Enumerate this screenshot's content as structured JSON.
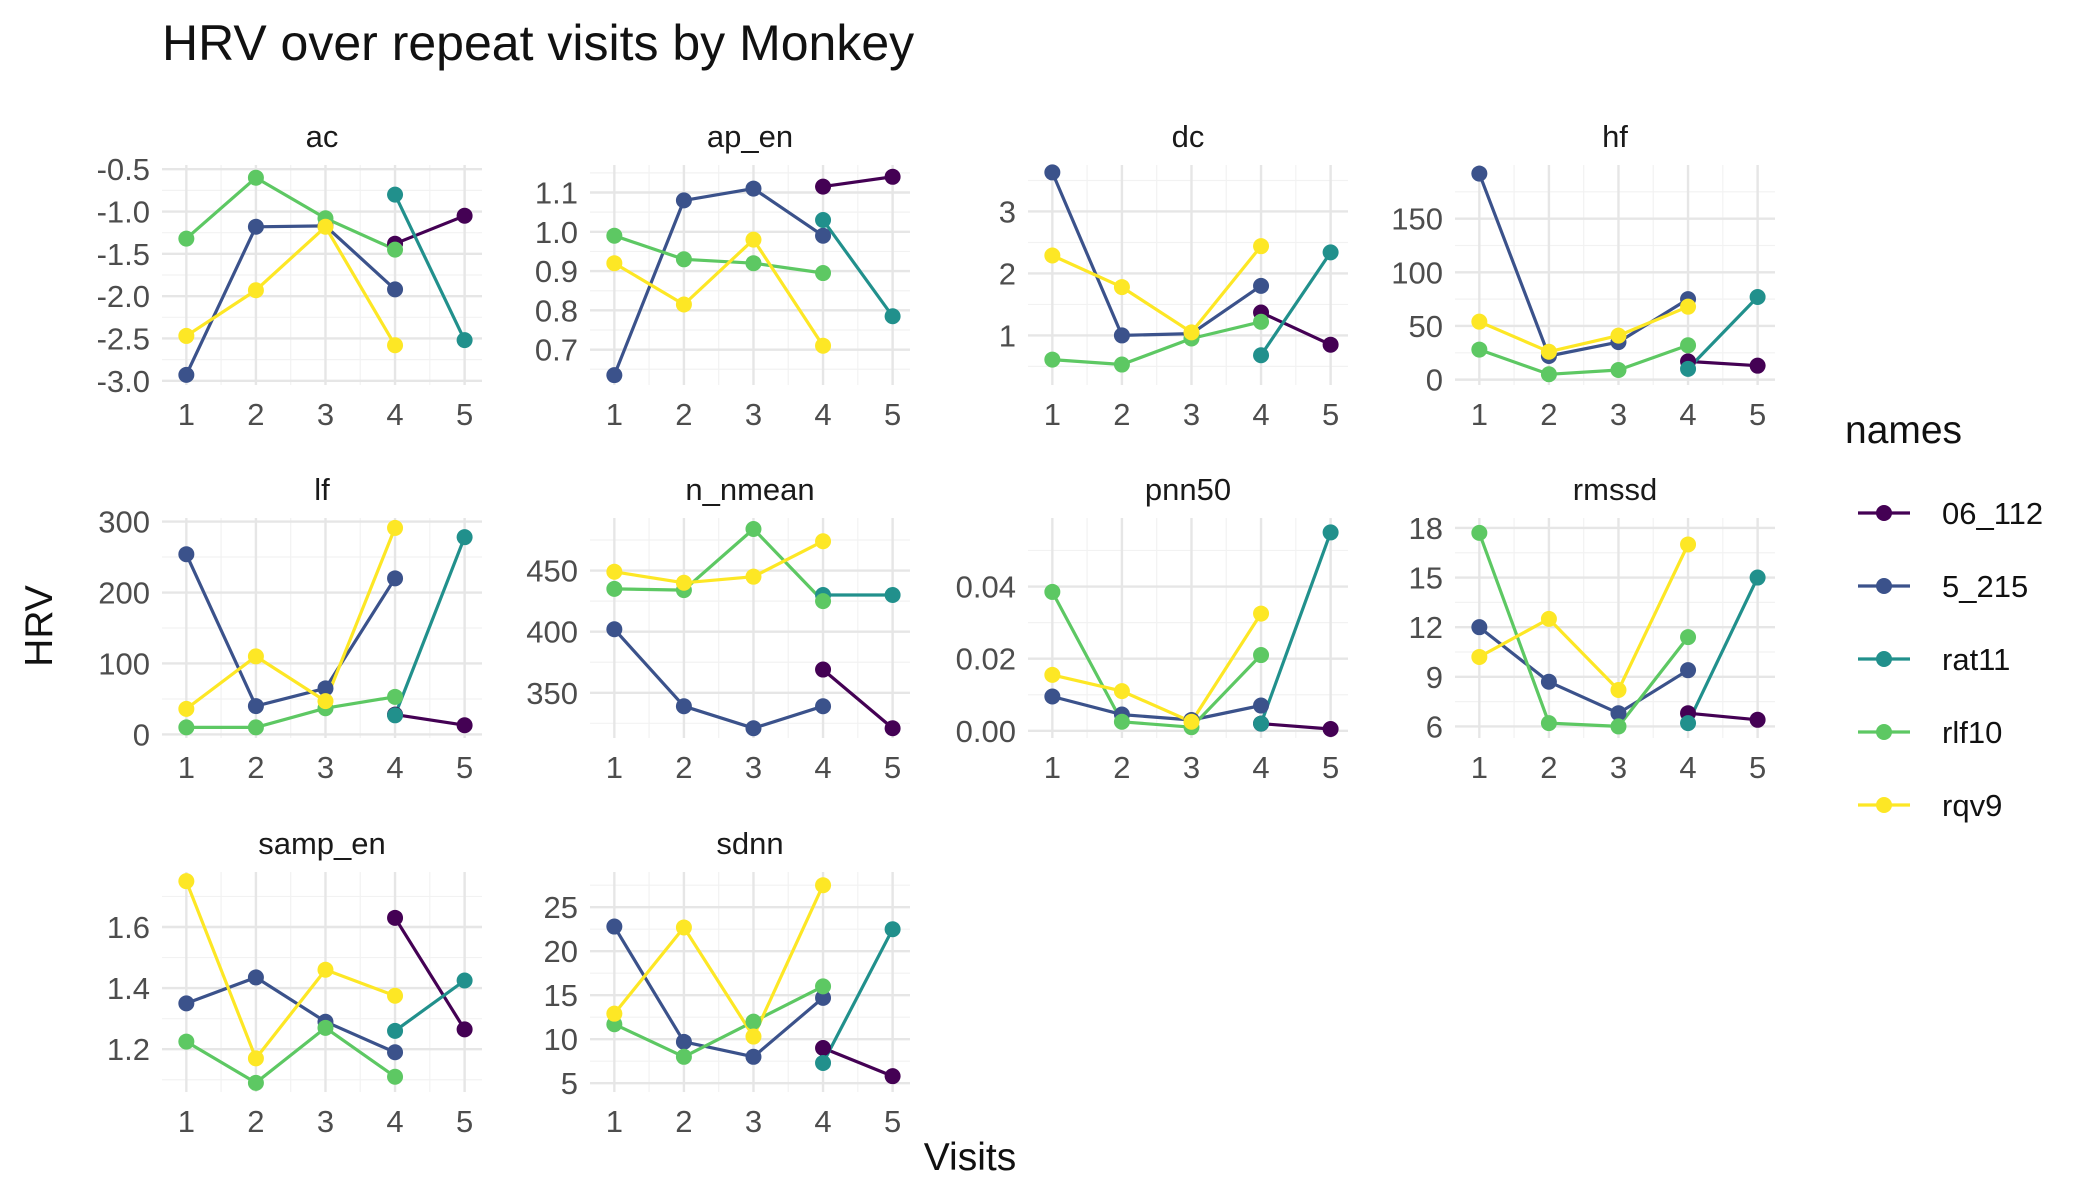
{
  "chart_data": {
    "type": "line",
    "title": "HRV over repeat visits by Monkey",
    "xlabel": "Visits",
    "ylabel": "HRV",
    "legend": {
      "title": "names",
      "position": "right",
      "entries": [
        {
          "name": "06_112",
          "color": "#440154"
        },
        {
          "name": "5_215",
          "color": "#3B528B"
        },
        {
          "name": "rat11",
          "color": "#21908C"
        },
        {
          "name": "rlf10",
          "color": "#5DC863"
        },
        {
          "name": "rqv9",
          "color": "#FDE725"
        }
      ]
    },
    "x_ticks": [
      "1",
      "2",
      "3",
      "4",
      "5"
    ],
    "xlim": [
      0.65,
      5.25
    ],
    "grid": true,
    "panels": [
      {
        "name": "ac",
        "ylim": [
          -3.05,
          -0.45
        ],
        "y_ticks": [
          -3.0,
          -2.5,
          -2.0,
          -1.5,
          -1.0,
          -0.5
        ],
        "y_tick_labels": [
          "-3.0",
          "-2.5",
          "-2.0",
          "-1.5",
          "-1.0",
          "-0.5"
        ],
        "series": [
          {
            "name": "06_112",
            "x": [
              4,
              5
            ],
            "y": [
              -1.38,
              -1.05
            ]
          },
          {
            "name": "5_215",
            "x": [
              1,
              2,
              3,
              4
            ],
            "y": [
              -2.93,
              -1.18,
              -1.17,
              -1.92
            ]
          },
          {
            "name": "rat11",
            "x": [
              4,
              5
            ],
            "y": [
              -0.8,
              -2.52
            ]
          },
          {
            "name": "rlf10",
            "x": [
              1,
              2,
              3,
              4
            ],
            "y": [
              -1.32,
              -0.6,
              -1.08,
              -1.45
            ]
          },
          {
            "name": "rqv9",
            "x": [
              1,
              2,
              3,
              4
            ],
            "y": [
              -2.47,
              -1.93,
              -1.18,
              -2.58
            ]
          }
        ]
      },
      {
        "name": "ap_en",
        "ylim": [
          0.61,
          1.17
        ],
        "y_ticks": [
          0.7,
          0.8,
          0.9,
          1.0,
          1.1
        ],
        "y_tick_labels": [
          "0.7",
          "0.8",
          "0.9",
          "1.0",
          "1.1"
        ],
        "series": [
          {
            "name": "06_112",
            "x": [
              4,
              5
            ],
            "y": [
              1.115,
              1.14
            ]
          },
          {
            "name": "5_215",
            "x": [
              1,
              2,
              3,
              4
            ],
            "y": [
              0.635,
              1.08,
              1.11,
              0.99
            ]
          },
          {
            "name": "rat11",
            "x": [
              4,
              5
            ],
            "y": [
              1.03,
              0.785
            ]
          },
          {
            "name": "rlf10",
            "x": [
              1,
              2,
              3,
              4
            ],
            "y": [
              0.99,
              0.93,
              0.92,
              0.895
            ]
          },
          {
            "name": "rqv9",
            "x": [
              1,
              2,
              3,
              4
            ],
            "y": [
              0.92,
              0.815,
              0.98,
              0.71
            ]
          }
        ]
      },
      {
        "name": "dc",
        "ylim": [
          0.2,
          3.75
        ],
        "y_ticks": [
          1,
          2,
          3
        ],
        "y_tick_labels": [
          "1",
          "2",
          "3"
        ],
        "series": [
          {
            "name": "06_112",
            "x": [
              4,
              5
            ],
            "y": [
              1.37,
              0.85
            ]
          },
          {
            "name": "5_215",
            "x": [
              1,
              2,
              3,
              4
            ],
            "y": [
              3.63,
              1.0,
              1.03,
              1.8
            ]
          },
          {
            "name": "rat11",
            "x": [
              4,
              5
            ],
            "y": [
              0.68,
              2.34
            ]
          },
          {
            "name": "rlf10",
            "x": [
              1,
              2,
              3,
              4
            ],
            "y": [
              0.61,
              0.53,
              0.95,
              1.22
            ]
          },
          {
            "name": "rqv9",
            "x": [
              1,
              2,
              3,
              4
            ],
            "y": [
              2.29,
              1.78,
              1.05,
              2.44
            ]
          }
        ]
      },
      {
        "name": "hf",
        "ylim": [
          -5,
          200
        ],
        "y_ticks": [
          0,
          50,
          100,
          150
        ],
        "y_tick_labels": [
          "0",
          "50",
          "100",
          "150"
        ],
        "series": [
          {
            "name": "06_112",
            "x": [
              4,
              5
            ],
            "y": [
              17,
              13
            ]
          },
          {
            "name": "5_215",
            "x": [
              1,
              2,
              3,
              4
            ],
            "y": [
              192,
              22,
              35,
              75
            ]
          },
          {
            "name": "rat11",
            "x": [
              4,
              5
            ],
            "y": [
              10,
              77
            ]
          },
          {
            "name": "rlf10",
            "x": [
              1,
              2,
              3,
              4
            ],
            "y": [
              28,
              5,
              9,
              32
            ]
          },
          {
            "name": "rqv9",
            "x": [
              1,
              2,
              3,
              4
            ],
            "y": [
              54,
              26,
              41,
              68
            ]
          }
        ]
      },
      {
        "name": "lf",
        "ylim": [
          -5,
          305
        ],
        "y_ticks": [
          0,
          100,
          200,
          300
        ],
        "y_tick_labels": [
          "0",
          "100",
          "200",
          "300"
        ],
        "series": [
          {
            "name": "06_112",
            "x": [
              4,
              5
            ],
            "y": [
              28,
              13
            ]
          },
          {
            "name": "5_215",
            "x": [
              1,
              2,
              3,
              4
            ],
            "y": [
              254,
              40,
              65,
              220
            ]
          },
          {
            "name": "rat11",
            "x": [
              4,
              5
            ],
            "y": [
              27,
              278
            ]
          },
          {
            "name": "rlf10",
            "x": [
              1,
              2,
              3,
              4
            ],
            "y": [
              10,
              10,
              37,
              53
            ]
          },
          {
            "name": "rqv9",
            "x": [
              1,
              2,
              3,
              4
            ],
            "y": [
              36,
              110,
              47,
              291
            ]
          }
        ]
      },
      {
        "name": "n_nmean",
        "ylim": [
          313,
          493
        ],
        "y_ticks": [
          350,
          400,
          450
        ],
        "y_tick_labels": [
          "350",
          "400",
          "450"
        ],
        "series": [
          {
            "name": "06_112",
            "x": [
              4,
              5
            ],
            "y": [
              369,
              321
            ]
          },
          {
            "name": "5_215",
            "x": [
              1,
              2,
              3,
              4
            ],
            "y": [
              402,
              339,
              321,
              339
            ]
          },
          {
            "name": "rat11",
            "x": [
              4,
              5
            ],
            "y": [
              430,
              430
            ]
          },
          {
            "name": "rlf10",
            "x": [
              1,
              2,
              3,
              4
            ],
            "y": [
              435,
              434,
              484,
              425
            ]
          },
          {
            "name": "rqv9",
            "x": [
              1,
              2,
              3,
              4
            ],
            "y": [
              449,
              440,
              445,
              474
            ]
          }
        ]
      },
      {
        "name": "pnn50",
        "ylim": [
          -0.002,
          0.059
        ],
        "y_ticks": [
          0.0,
          0.02,
          0.04
        ],
        "y_tick_labels": [
          "0.00",
          "0.02",
          "0.04"
        ],
        "series": [
          {
            "name": "06_112",
            "x": [
              4,
              5
            ],
            "y": [
              0.002,
              0.0005
            ]
          },
          {
            "name": "5_215",
            "x": [
              1,
              2,
              3,
              4
            ],
            "y": [
              0.0095,
              0.0045,
              0.003,
              0.007
            ]
          },
          {
            "name": "rat11",
            "x": [
              4,
              5
            ],
            "y": [
              0.002,
              0.055
            ]
          },
          {
            "name": "rlf10",
            "x": [
              1,
              2,
              3,
              4
            ],
            "y": [
              0.0385,
              0.0025,
              0.001,
              0.021
            ]
          },
          {
            "name": "rqv9",
            "x": [
              1,
              2,
              3,
              4
            ],
            "y": [
              0.0155,
              0.011,
              0.0025,
              0.0325
            ]
          }
        ]
      },
      {
        "name": "rmssd",
        "ylim": [
          5.3,
          18.6
        ],
        "y_ticks": [
          6,
          9,
          12,
          15,
          18
        ],
        "y_tick_labels": [
          "6",
          "9",
          "12",
          "15",
          "18"
        ],
        "series": [
          {
            "name": "06_112",
            "x": [
              4,
              5
            ],
            "y": [
              6.8,
              6.4
            ]
          },
          {
            "name": "5_215",
            "x": [
              1,
              2,
              3,
              4
            ],
            "y": [
              12.0,
              8.7,
              6.8,
              9.4
            ]
          },
          {
            "name": "rat11",
            "x": [
              4,
              5
            ],
            "y": [
              6.2,
              15.0
            ]
          },
          {
            "name": "rlf10",
            "x": [
              1,
              2,
              3,
              4
            ],
            "y": [
              17.7,
              6.2,
              6.0,
              11.4
            ]
          },
          {
            "name": "rqv9",
            "x": [
              1,
              2,
              3,
              4
            ],
            "y": [
              10.2,
              12.5,
              8.2,
              17.0
            ]
          }
        ]
      },
      {
        "name": "samp_en",
        "ylim": [
          1.06,
          1.78
        ],
        "y_ticks": [
          1.2,
          1.4,
          1.6
        ],
        "y_tick_labels": [
          "1.2",
          "1.4",
          "1.6"
        ],
        "series": [
          {
            "name": "06_112",
            "x": [
              4,
              5
            ],
            "y": [
              1.63,
              1.265
            ]
          },
          {
            "name": "5_215",
            "x": [
              1,
              2,
              3,
              4
            ],
            "y": [
              1.35,
              1.435,
              1.29,
              1.19
            ]
          },
          {
            "name": "rat11",
            "x": [
              4,
              5
            ],
            "y": [
              1.26,
              1.425
            ]
          },
          {
            "name": "rlf10",
            "x": [
              1,
              2,
              3,
              4
            ],
            "y": [
              1.225,
              1.09,
              1.27,
              1.11
            ]
          },
          {
            "name": "rqv9",
            "x": [
              1,
              2,
              3,
              4
            ],
            "y": [
              1.75,
              1.17,
              1.46,
              1.375
            ]
          }
        ]
      },
      {
        "name": "sdnn",
        "ylim": [
          4,
          29
        ],
        "y_ticks": [
          5,
          10,
          15,
          20,
          25
        ],
        "y_tick_labels": [
          "5",
          "10",
          "15",
          "20",
          "25"
        ],
        "series": [
          {
            "name": "06_112",
            "x": [
              4,
              5
            ],
            "y": [
              9.0,
              5.8
            ]
          },
          {
            "name": "5_215",
            "x": [
              1,
              2,
              3,
              4
            ],
            "y": [
              22.8,
              9.7,
              8.0,
              14.7
            ]
          },
          {
            "name": "rat11",
            "x": [
              4,
              5
            ],
            "y": [
              7.3,
              22.5
            ]
          },
          {
            "name": "rlf10",
            "x": [
              1,
              2,
              3,
              4
            ],
            "y": [
              11.7,
              8.0,
              12.0,
              16.0
            ]
          },
          {
            "name": "rqv9",
            "x": [
              1,
              2,
              3,
              4
            ],
            "y": [
              12.9,
              22.7,
              10.3,
              27.5
            ]
          }
        ]
      }
    ]
  }
}
